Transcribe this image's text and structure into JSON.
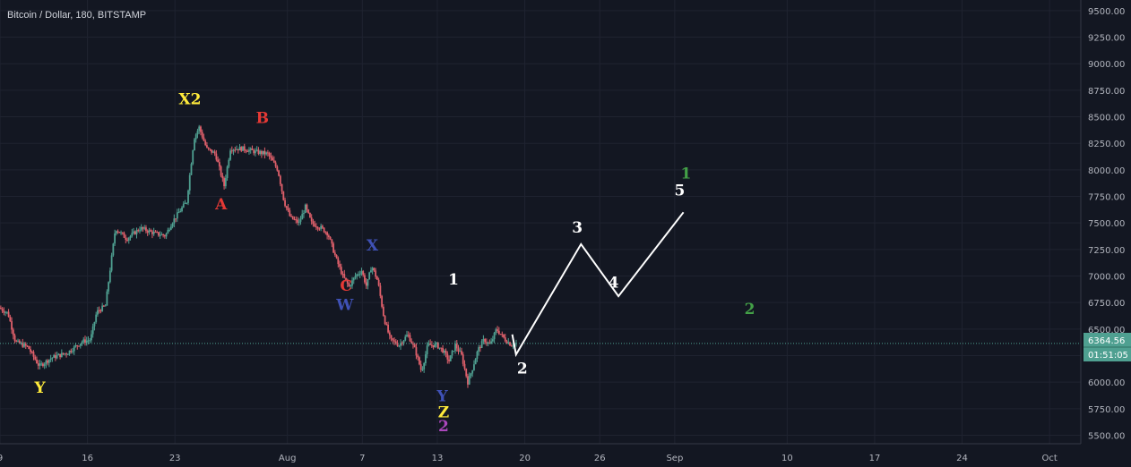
{
  "header": {
    "title": "Bitcoin / Dollar, 180, BITSTAMP"
  },
  "price_tag": {
    "last_price": "6364.56",
    "countdown": "01:51:05",
    "color": "#4fa091"
  },
  "colors": {
    "bg": "#131722",
    "grid": "#1f2330",
    "up": "#4fa091",
    "down": "#e0606b"
  },
  "chart_data": {
    "type": "candlestick",
    "title": "Bitcoin / Dollar, 180, BITSTAMP",
    "y_ticks": [
      5500,
      5750,
      6000,
      6250,
      6500,
      6750,
      7000,
      7250,
      7500,
      7750,
      8000,
      8250,
      8500,
      8750,
      9000,
      9250,
      9500
    ],
    "y_tick_labels": [
      "5500.00",
      "5750.00",
      "6000.00",
      "6250.00",
      "6500.00",
      "6750.00",
      "7000.00",
      "7250.00",
      "7500.00",
      "7750.00",
      "8000.00",
      "8250.00",
      "8500.00",
      "8750.00",
      "9000.00",
      "9250.00",
      "9500.00"
    ],
    "ylim": [
      5420,
      9600
    ],
    "x_ticks": [
      "9",
      "16",
      "23",
      "Aug",
      "7",
      "13",
      "20",
      "26",
      "Sep",
      "10",
      "17",
      "24",
      "Oct"
    ],
    "x_tick_days": [
      9,
      16,
      23,
      32,
      38,
      44,
      51,
      57,
      63,
      72,
      79,
      86,
      93
    ],
    "xlim_days": [
      9,
      95.5
    ],
    "price_path": [
      [
        9.0,
        6700
      ],
      [
        9.7,
        6650
      ],
      [
        10.3,
        6380
      ],
      [
        11.3,
        6330
      ],
      [
        12.2,
        6150
      ],
      [
        13.2,
        6230
      ],
      [
        14.5,
        6280
      ],
      [
        15.6,
        6380
      ],
      [
        16.3,
        6400
      ],
      [
        16.8,
        6660
      ],
      [
        17.5,
        6720
      ],
      [
        18.3,
        7450
      ],
      [
        19.2,
        7350
      ],
      [
        20.3,
        7450
      ],
      [
        21.5,
        7400
      ],
      [
        22.3,
        7380
      ],
      [
        22.8,
        7500
      ],
      [
        23.5,
        7620
      ],
      [
        24.0,
        7700
      ],
      [
        24.6,
        8300
      ],
      [
        25.0,
        8400
      ],
      [
        25.6,
        8200
      ],
      [
        26.3,
        8150
      ],
      [
        27.0,
        7850
      ],
      [
        27.5,
        8200
      ],
      [
        28.5,
        8200
      ],
      [
        29.5,
        8170
      ],
      [
        30.5,
        8150
      ],
      [
        31.3,
        8000
      ],
      [
        31.8,
        7700
      ],
      [
        32.3,
        7550
      ],
      [
        33.0,
        7500
      ],
      [
        33.5,
        7650
      ],
      [
        34.0,
        7500
      ],
      [
        34.8,
        7450
      ],
      [
        35.3,
        7400
      ],
      [
        36.0,
        7150
      ],
      [
        36.5,
        7000
      ],
      [
        37.0,
        6900
      ],
      [
        37.5,
        7000
      ],
      [
        38.0,
        7050
      ],
      [
        38.4,
        6900
      ],
      [
        38.8,
        7100
      ],
      [
        39.3,
        6950
      ],
      [
        39.8,
        6600
      ],
      [
        40.3,
        6400
      ],
      [
        41.0,
        6350
      ],
      [
        41.7,
        6450
      ],
      [
        42.3,
        6300
      ],
      [
        42.8,
        6100
      ],
      [
        43.3,
        6350
      ],
      [
        44.0,
        6350
      ],
      [
        44.5,
        6300
      ],
      [
        45.0,
        6200
      ],
      [
        45.5,
        6350
      ],
      [
        46.0,
        6250
      ],
      [
        46.5,
        6000
      ],
      [
        46.8,
        6100
      ],
      [
        47.3,
        6300
      ],
      [
        47.8,
        6400
      ],
      [
        48.3,
        6350
      ],
      [
        48.8,
        6500
      ],
      [
        49.5,
        6400
      ],
      [
        50.0,
        6350
      ],
      [
        50.3,
        6364
      ]
    ],
    "projection": {
      "points": [
        [
          50.0,
          6450
        ],
        [
          50.3,
          6260
        ],
        [
          55.5,
          7300
        ],
        [
          58.5,
          6810
        ],
        [
          63.7,
          7600
        ]
      ],
      "labels": [
        "2",
        "3",
        "4",
        "5"
      ]
    },
    "annotations": [
      {
        "text": "X2",
        "day": 24.2,
        "price": 8620,
        "color": "#ffeb3b"
      },
      {
        "text": "B",
        "day": 30.0,
        "price": 8440,
        "color": "#e53935"
      },
      {
        "text": "A",
        "day": 26.7,
        "price": 7630,
        "color": "#e53935"
      },
      {
        "text": "X",
        "day": 38.8,
        "price": 7240,
        "color": "#3f51b5"
      },
      {
        "text": "C",
        "day": 36.7,
        "price": 6860,
        "color": "#e53935"
      },
      {
        "text": "W",
        "day": 36.6,
        "price": 6680,
        "color": "#3f51b5"
      },
      {
        "text": "Y",
        "day": 12.2,
        "price": 5900,
        "color": "#ffeb3b"
      },
      {
        "text": "1",
        "day": 45.3,
        "price": 6920,
        "color": "#ffffff"
      },
      {
        "text": "Y",
        "day": 44.4,
        "price": 5820,
        "color": "#3f51b5"
      },
      {
        "text": "Z",
        "day": 44.5,
        "price": 5670,
        "color": "#ffeb3b"
      },
      {
        "text": "2",
        "day": 44.5,
        "price": 5540,
        "color": "#ab47bc"
      },
      {
        "text": "2",
        "day": 50.8,
        "price": 6080,
        "color": "#ffffff"
      },
      {
        "text": "3",
        "day": 55.2,
        "price": 7410,
        "color": "#ffffff"
      },
      {
        "text": "4",
        "day": 58.1,
        "price": 6890,
        "color": "#ffffff"
      },
      {
        "text": "5",
        "day": 63.4,
        "price": 7760,
        "color": "#ffffff"
      },
      {
        "text": "1",
        "day": 63.9,
        "price": 7920,
        "color": "#43a047"
      },
      {
        "text": "2",
        "day": 69.0,
        "price": 6640,
        "color": "#43a047"
      }
    ]
  }
}
